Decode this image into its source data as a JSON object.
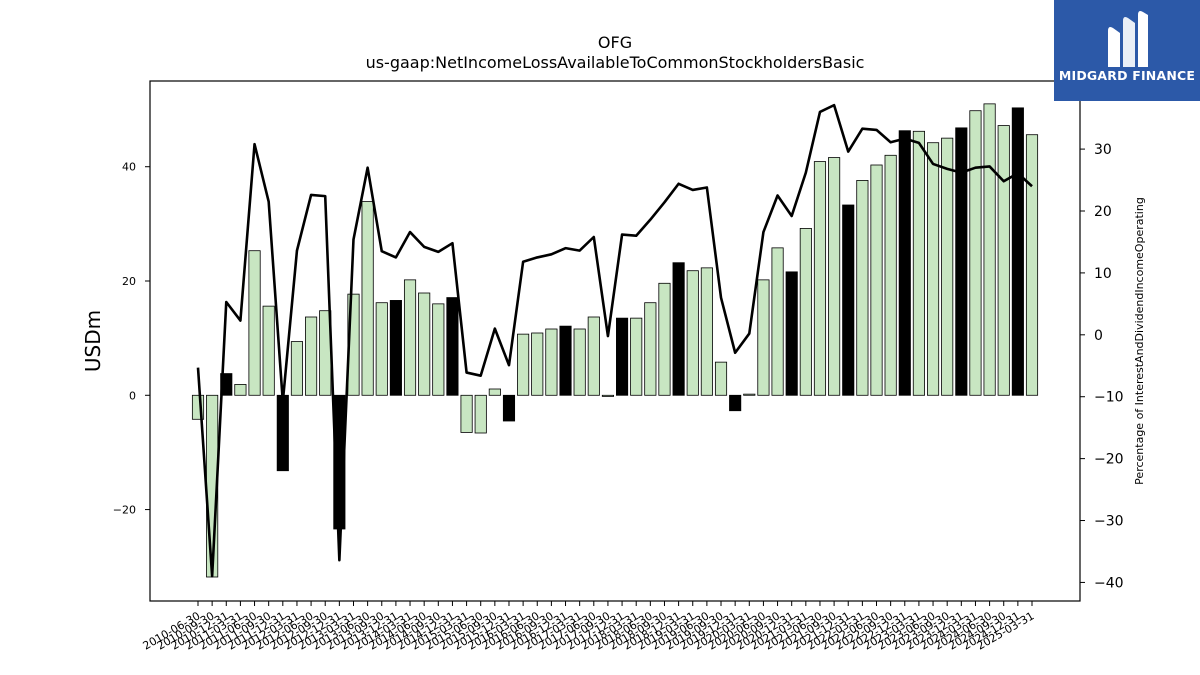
{
  "logo": {
    "text": "MIDGARD FINANCE",
    "bg_color": "#2c59a8"
  },
  "chart_data": {
    "type": "bar",
    "title": "OFG",
    "subtitle": "us-gaap:NetIncomeLossAvailableToCommonStockholdersBasic",
    "ylabel": "USDm",
    "y2label": "Percentage of InterestAndDividendIncomeOperating",
    "ylim": [
      -36,
      55
    ],
    "y2lim": [
      -43,
      41
    ],
    "yticks": [
      -20,
      0,
      20,
      40
    ],
    "y2ticks": [
      -40,
      -30,
      -20,
      -10,
      0,
      10,
      20,
      30
    ],
    "bar_colors": {
      "positive_q": "#c8e6c2",
      "q4": "#000000",
      "edge": "#000000"
    },
    "line_color": "#000000",
    "categories": [
      "2010-06-30",
      "2010-09-30",
      "2010-12-31",
      "2011-03-31",
      "2011-06-30",
      "2011-09-30",
      "2011-12-31",
      "2012-03-31",
      "2012-06-30",
      "2012-09-30",
      "2012-12-31",
      "2013-03-31",
      "2013-06-30",
      "2013-09-30",
      "2013-12-31",
      "2014-03-31",
      "2014-06-30",
      "2014-09-30",
      "2014-12-31",
      "2015-03-31",
      "2015-06-30",
      "2015-09-30",
      "2015-12-31",
      "2016-03-31",
      "2016-06-30",
      "2016-09-30",
      "2016-12-31",
      "2017-03-31",
      "2017-06-30",
      "2017-09-30",
      "2017-12-31",
      "2018-03-31",
      "2018-06-30",
      "2018-09-30",
      "2018-12-31",
      "2019-03-31",
      "2019-06-30",
      "2019-09-30",
      "2019-12-31",
      "2020-03-31",
      "2020-06-30",
      "2020-09-30",
      "2020-12-31",
      "2021-03-31",
      "2021-06-30",
      "2021-09-30",
      "2021-12-31",
      "2022-03-31",
      "2022-06-30",
      "2022-09-30",
      "2022-12-31",
      "2023-03-31",
      "2023-06-30",
      "2023-09-30",
      "2023-12-31",
      "2024-03-31",
      "2024-06-30",
      "2024-09-30",
      "2024-12-31",
      "2025-03-31"
    ],
    "series": [
      {
        "kind": "bar",
        "values": [
          -4.2,
          -31.8,
          3.8,
          1.9,
          25.3,
          15.6,
          -13.2,
          9.4,
          13.7,
          14.8,
          -23.4,
          17.7,
          33.9,
          16.2,
          16.6,
          20.2,
          17.9,
          16.0,
          17.1,
          -6.5,
          -6.6,
          1.1,
          -4.5,
          10.7,
          10.9,
          11.6,
          12.1,
          11.6,
          13.7,
          -0.2,
          13.5,
          13.5,
          16.2,
          19.6,
          23.2,
          21.8,
          22.3,
          5.8,
          -2.7,
          0.2,
          20.2,
          25.8,
          21.6,
          29.2,
          40.9,
          41.6,
          33.3,
          37.6,
          40.3,
          42.0,
          46.3,
          46.2,
          44.2,
          45.0,
          46.8,
          49.8,
          51.0,
          47.2,
          50.3,
          45.6
        ],
        "emphasis": [
          false,
          false,
          true,
          false,
          false,
          false,
          true,
          false,
          false,
          false,
          true,
          false,
          false,
          false,
          true,
          false,
          false,
          false,
          true,
          false,
          false,
          false,
          true,
          false,
          false,
          false,
          true,
          false,
          false,
          false,
          true,
          false,
          false,
          false,
          true,
          false,
          false,
          false,
          true,
          false,
          false,
          false,
          true,
          false,
          false,
          false,
          true,
          false,
          false,
          false,
          true,
          false,
          false,
          false,
          true,
          false,
          false,
          false,
          true,
          false
        ]
      },
      {
        "kind": "line",
        "axis": "right",
        "values": [
          -5.3,
          -39.0,
          5.3,
          2.3,
          30.8,
          21.5,
          -10.8,
          13.6,
          22.6,
          22.4,
          -36.4,
          15.4,
          27.0,
          13.5,
          12.5,
          16.6,
          14.2,
          13.4,
          14.8,
          -6.1,
          -6.6,
          1.0,
          -4.9,
          11.8,
          12.5,
          13.0,
          14.0,
          13.6,
          15.8,
          -0.2,
          16.2,
          16.0,
          18.6,
          21.4,
          24.4,
          23.4,
          23.8,
          6.0,
          -2.9,
          0.2,
          16.6,
          22.5,
          19.2,
          26.2,
          36.0,
          37.1,
          29.6,
          33.3,
          33.1,
          31.1,
          31.7,
          31.0,
          27.6,
          26.8,
          26.2,
          27.0,
          27.2,
          24.8,
          26.1,
          24.0
        ]
      }
    ]
  }
}
